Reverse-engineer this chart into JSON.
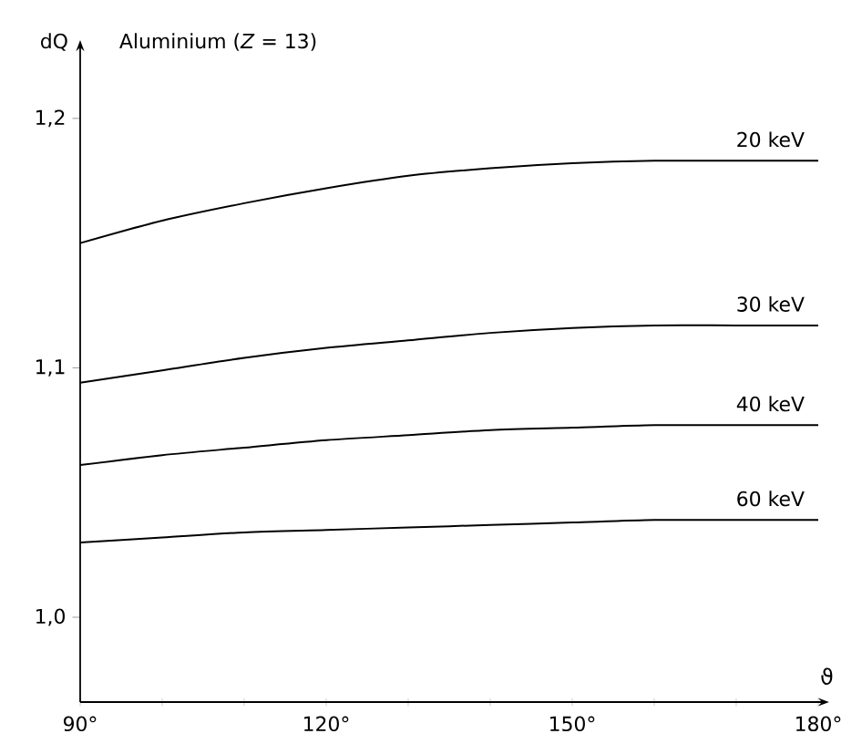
{
  "chart_data": {
    "type": "line",
    "title": "Aluminium  (*Z* = 13)",
    "xlabel": "ϑ",
    "ylabel": "dQ",
    "x": [
      90,
      100,
      110,
      120,
      130,
      140,
      150,
      160,
      170,
      180
    ],
    "series": [
      {
        "name": "20 keV",
        "color": "#000000",
        "values": [
          1.15,
          1.159,
          1.166,
          1.172,
          1.177,
          1.18,
          1.182,
          1.183,
          1.183,
          1.183
        ]
      },
      {
        "name": "30 keV",
        "color": "#000000",
        "values": [
          1.094,
          1.099,
          1.104,
          1.108,
          1.111,
          1.114,
          1.116,
          1.117,
          1.117,
          1.117
        ]
      },
      {
        "name": "40 keV",
        "color": "#000000",
        "values": [
          1.061,
          1.065,
          1.068,
          1.071,
          1.073,
          1.075,
          1.076,
          1.077,
          1.077,
          1.077
        ]
      },
      {
        "name": "60 keV",
        "color": "#000000",
        "values": [
          1.03,
          1.032,
          1.034,
          1.035,
          1.036,
          1.037,
          1.038,
          1.039,
          1.039,
          1.039
        ]
      }
    ],
    "xlim": [
      90,
      180
    ],
    "ylim": [
      0.966,
      1.227
    ],
    "xticks": [
      {
        "value": 90,
        "label": "90°"
      },
      {
        "value": 100,
        "label": null
      },
      {
        "value": 110,
        "label": null
      },
      {
        "value": 120,
        "label": "120°"
      },
      {
        "value": 130,
        "label": null
      },
      {
        "value": 140,
        "label": null
      },
      {
        "value": 150,
        "label": "150°"
      },
      {
        "value": 160,
        "label": null
      },
      {
        "value": 170,
        "label": null
      },
      {
        "value": 180,
        "label": "180°"
      }
    ],
    "yticks": [
      {
        "value": 1.0,
        "label": "1,0"
      },
      {
        "value": 1.1,
        "label": "1,1"
      },
      {
        "value": 1.2,
        "label": "1,2"
      }
    ],
    "marker": "none",
    "line_style": "solid"
  }
}
